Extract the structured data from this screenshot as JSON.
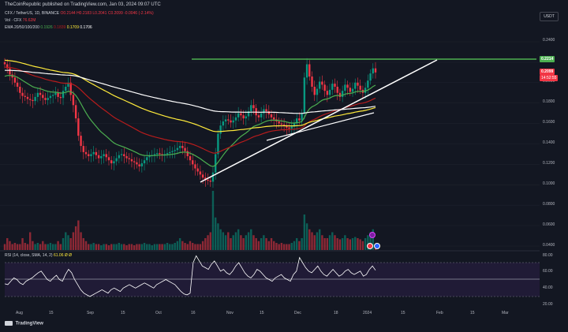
{
  "header": {
    "publisher": "TheCoinRepublic published on TradingView.com, Jan 03, 2024 09:07 UTC"
  },
  "legend": {
    "symbol": "CFX / TetherUS, 1D, BINANCE",
    "ohlc_text": "O0.2144 H0.2183 L0.2041 C0.2099 -0.0046 (-2.14%)",
    "vol_label": "Vol · CFX",
    "vol_value": "76.62M",
    "ema_label": "EMA 20/50/100/200",
    "ema20": "0.1926",
    "ema50": "0.1839",
    "ema100": "0.1709",
    "ema200": "0.1706",
    "rsi_label": "RSI (14, close, SMA, 14, 2)",
    "rsi_values": "61.06  Ø  Ø"
  },
  "currency_button": "USDT",
  "price_axis": [
    "0.2400",
    "0.2200",
    "0.2000",
    "0.1800",
    "0.1600",
    "0.1400",
    "0.1200",
    "0.1000",
    "0.0800",
    "0.0600",
    "0.0400"
  ],
  "rsi_axis": [
    "80.00",
    "60.00",
    "40.00",
    "20.00"
  ],
  "time_axis": [
    "Aug",
    "15",
    "Sep",
    "15",
    "Oct",
    "16",
    "Nov",
    "15",
    "Dec",
    "18",
    "2024",
    "15",
    "Feb",
    "15",
    "Mar"
  ],
  "tags": {
    "resistance": "0.2214",
    "last_price": "0.2099",
    "countdown": "14:52:55"
  },
  "colors": {
    "background": "#131722",
    "up": "#089981",
    "down": "#f23645",
    "ema20": "#4caf50",
    "ema50": "#b71c1c",
    "ema100": "#ffeb3b",
    "ema200": "#ffffff",
    "resistance_line": "#4caf50",
    "rsi": "#ffffff"
  },
  "footer": {
    "brand": "TradingView"
  },
  "chart_data": {
    "type": "candlestick",
    "title": "CFX / TetherUS, 1D, BINANCE",
    "y_range": [
      0.035,
      0.255
    ],
    "price_ticks": [
      0.24,
      0.22,
      0.2,
      0.18,
      0.16,
      0.14,
      0.12,
      0.1,
      0.08,
      0.06,
      0.04
    ],
    "x_ticks": [
      "Aug",
      "15",
      "Sep",
      "15",
      "Oct",
      "16",
      "Nov",
      "15",
      "Dec",
      "18",
      "2024",
      "15",
      "Feb",
      "15",
      "Mar"
    ],
    "closes_approx": [
      0.218,
      0.214,
      0.208,
      0.205,
      0.2,
      0.196,
      0.19,
      0.187,
      0.186,
      0.184,
      0.183,
      0.182,
      0.186,
      0.19,
      0.188,
      0.185,
      0.183,
      0.185,
      0.187,
      0.188,
      0.19,
      0.186,
      0.185,
      0.192,
      0.196,
      0.2,
      0.188,
      0.178,
      0.165,
      0.148,
      0.138,
      0.132,
      0.13,
      0.128,
      0.13,
      0.132,
      0.129,
      0.126,
      0.128,
      0.13,
      0.127,
      0.124,
      0.121,
      0.123,
      0.126,
      0.129,
      0.13,
      0.128,
      0.126,
      0.125,
      0.123,
      0.122,
      0.12,
      0.118,
      0.121,
      0.124,
      0.127,
      0.128,
      0.129,
      0.13,
      0.131,
      0.13,
      0.129,
      0.13,
      0.131,
      0.132,
      0.133,
      0.134,
      0.136,
      0.138,
      0.136,
      0.133,
      0.128,
      0.124,
      0.12,
      0.116,
      0.113,
      0.11,
      0.107,
      0.105,
      0.104,
      0.103,
      0.112,
      0.13,
      0.15,
      0.158,
      0.162,
      0.164,
      0.163,
      0.161,
      0.163,
      0.166,
      0.17,
      0.168,
      0.165,
      0.167,
      0.172,
      0.178,
      0.175,
      0.168,
      0.166,
      0.17,
      0.174,
      0.172,
      0.169,
      0.166,
      0.164,
      0.162,
      0.16,
      0.159,
      0.158,
      0.156,
      0.155,
      0.157,
      0.16,
      0.165,
      0.163,
      0.17,
      0.205,
      0.218,
      0.206,
      0.196,
      0.188,
      0.194,
      0.201,
      0.198,
      0.192,
      0.188,
      0.193,
      0.199,
      0.196,
      0.19,
      0.186,
      0.192,
      0.198,
      0.195,
      0.191,
      0.194,
      0.2,
      0.197,
      0.193,
      0.19,
      0.195,
      0.202,
      0.209,
      0.214,
      0.21
    ],
    "volume_relative": [
      0.1,
      0.2,
      0.15,
      0.1,
      0.12,
      0.1,
      0.1,
      0.2,
      0.12,
      0.1,
      0.3,
      0.15,
      0.1,
      0.12,
      0.1,
      0.15,
      0.1,
      0.1,
      0.12,
      0.1,
      0.1,
      0.15,
      0.1,
      0.2,
      0.3,
      0.25,
      0.2,
      0.3,
      0.4,
      0.5,
      0.3,
      0.2,
      0.15,
      0.1,
      0.1,
      0.12,
      0.1,
      0.1,
      0.08,
      0.1,
      0.1,
      0.08,
      0.1,
      0.1,
      0.1,
      0.12,
      0.1,
      0.1,
      0.08,
      0.1,
      0.1,
      0.08,
      0.1,
      0.1,
      0.1,
      0.12,
      0.1,
      0.1,
      0.08,
      0.1,
      0.1,
      0.1,
      0.1,
      0.1,
      0.12,
      0.1,
      0.1,
      0.12,
      0.15,
      0.2,
      0.15,
      0.12,
      0.1,
      0.15,
      0.12,
      0.1,
      0.1,
      0.1,
      0.15,
      0.2,
      0.25,
      0.3,
      1.0,
      0.55,
      0.45,
      0.35,
      0.3,
      0.25,
      0.3,
      0.2,
      0.25,
      0.3,
      0.35,
      0.25,
      0.2,
      0.25,
      0.3,
      0.35,
      0.25,
      0.2,
      0.15,
      0.2,
      0.25,
      0.2,
      0.15,
      0.2,
      0.15,
      0.12,
      0.1,
      0.12,
      0.1,
      0.1,
      0.1,
      0.12,
      0.15,
      0.2,
      0.15,
      0.2,
      0.6,
      0.45,
      0.35,
      0.3,
      0.25,
      0.3,
      0.35,
      0.25,
      0.2,
      0.2,
      0.25,
      0.3,
      0.25,
      0.2,
      0.18,
      0.2,
      0.25,
      0.2,
      0.18,
      0.2,
      0.22,
      0.2,
      0.18,
      0.15,
      0.2,
      0.25,
      0.3,
      0.35,
      0.1
    ],
    "rsi_ticks": [
      80,
      60,
      40,
      20
    ],
    "rsi_values_approx": [
      45,
      44,
      48,
      52,
      50,
      46,
      44,
      48,
      50,
      52,
      55,
      58,
      60,
      55,
      50,
      48,
      52,
      55,
      50,
      48,
      56,
      62,
      58,
      50,
      44,
      38,
      34,
      32,
      30,
      32,
      34,
      36,
      38,
      36,
      34,
      38,
      40,
      38,
      36,
      40,
      42,
      44,
      42,
      40,
      42,
      44,
      46,
      44,
      42,
      40,
      44,
      46,
      48,
      50,
      48,
      46,
      44,
      40,
      36,
      33,
      32,
      34,
      70,
      78,
      72,
      66,
      64,
      62,
      68,
      72,
      66,
      60,
      62,
      58,
      56,
      60,
      66,
      70,
      64,
      58,
      54,
      52,
      56,
      62,
      60,
      56,
      52,
      50,
      48,
      52,
      54,
      56,
      52,
      50,
      48,
      56,
      60,
      76,
      70,
      64,
      60,
      58,
      62,
      66,
      60,
      56,
      54,
      58,
      62,
      58,
      54,
      56,
      60,
      62,
      58,
      56,
      58,
      60,
      54,
      56,
      62,
      66,
      61
    ]
  }
}
